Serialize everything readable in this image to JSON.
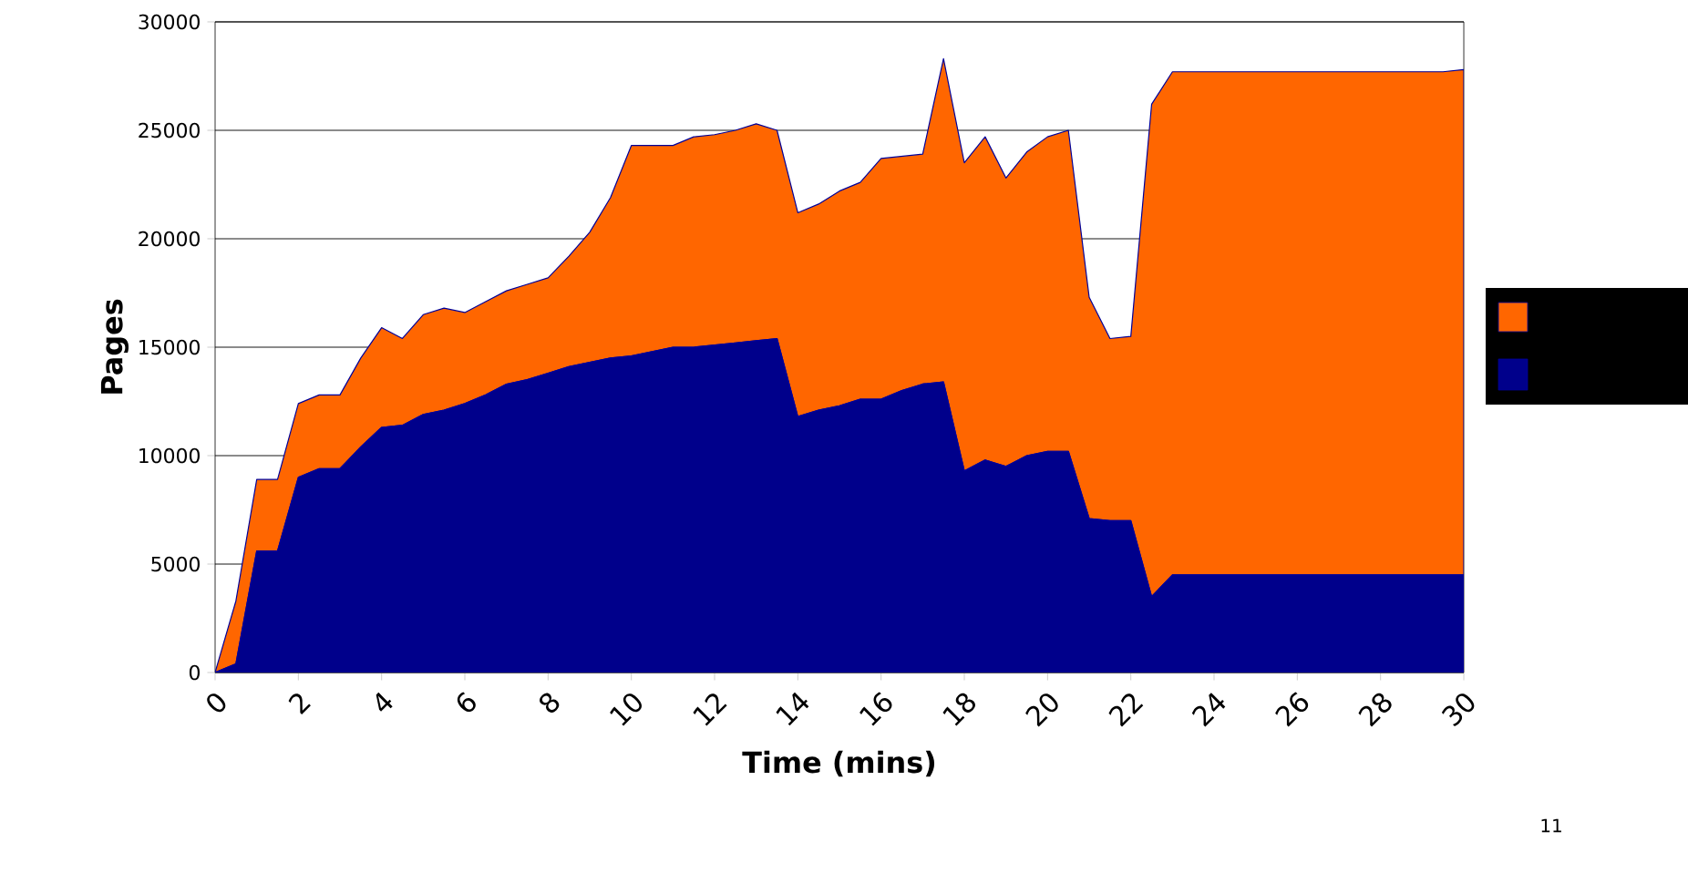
{
  "chart_data": {
    "type": "area",
    "stacked": true,
    "xlabel": "Time (mins)",
    "ylabel": "Pages",
    "x": [
      0,
      0.5,
      1,
      1.5,
      2,
      2.5,
      3,
      3.5,
      4,
      4.5,
      5,
      5.5,
      6,
      6.5,
      7,
      7.5,
      8,
      8.5,
      9,
      9.5,
      10,
      10.5,
      11,
      11.5,
      12,
      12.5,
      13,
      13.5,
      14,
      14.5,
      15,
      15.5,
      16,
      16.5,
      17,
      17.5,
      18,
      18.5,
      19,
      19.5,
      20,
      20.5,
      21,
      21.5,
      22,
      22.5,
      23,
      23.5,
      24,
      24.5,
      25,
      25.5,
      26,
      26.5,
      27,
      27.5,
      28,
      28.5,
      29,
      29.5,
      30
    ],
    "series": [
      {
        "color": "#00008b",
        "values": [
          0,
          400,
          5600,
          5600,
          9000,
          9400,
          9400,
          10400,
          11300,
          11400,
          11900,
          12100,
          12400,
          12800,
          13300,
          13500,
          13800,
          14100,
          14300,
          14500,
          14600,
          14800,
          15000,
          15000,
          15100,
          15200,
          15300,
          15400,
          11800,
          12100,
          12300,
          12600,
          12600,
          13000,
          13300,
          13400,
          9300,
          9800,
          9500,
          10000,
          10200,
          10200,
          7100,
          7000,
          7000,
          3500,
          4500,
          4500,
          4500,
          4500,
          4500,
          4500,
          4500,
          4500,
          4500,
          4500,
          4500,
          4500,
          4500,
          4500,
          4500
        ]
      },
      {
        "color": "#ff6600",
        "values": [
          0,
          2900,
          3300,
          3300,
          3400,
          3400,
          3400,
          4100,
          4600,
          4000,
          4600,
          4700,
          4200,
          4300,
          4300,
          4400,
          4400,
          5100,
          6000,
          7400,
          9700,
          9500,
          9300,
          9700,
          9700,
          9800,
          10000,
          9600,
          9400,
          9500,
          9900,
          10000,
          11100,
          10800,
          10600,
          14900,
          14200,
          14900,
          13300,
          14000,
          14500,
          14800,
          10200,
          8400,
          8500,
          22700,
          23200,
          23200,
          23200,
          23200,
          23200,
          23200,
          23200,
          23200,
          23200,
          23200,
          23200,
          23200,
          23200,
          23200,
          23300
        ]
      }
    ],
    "xlim": [
      0,
      30
    ],
    "ylim": [
      0,
      30000
    ],
    "xticks": [
      0,
      2,
      4,
      6,
      8,
      10,
      12,
      14,
      16,
      18,
      20,
      22,
      24,
      26,
      28,
      30
    ],
    "yticks": [
      0,
      5000,
      10000,
      15000,
      20000,
      25000,
      30000
    ],
    "grid": "y",
    "annotations": [
      "11"
    ]
  }
}
